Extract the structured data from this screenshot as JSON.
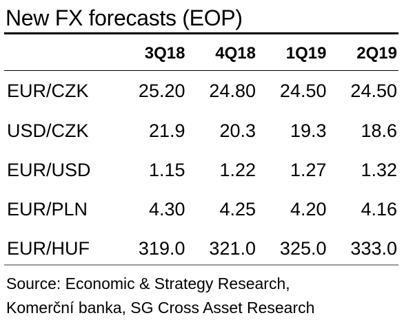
{
  "title": "New FX forecasts (EOP)",
  "table": {
    "columns": [
      "3Q18",
      "4Q18",
      "1Q19",
      "2Q19"
    ],
    "rows": [
      {
        "label": "EUR/CZK",
        "values": [
          "25.20",
          "24.80",
          "24.50",
          "24.50"
        ]
      },
      {
        "label": "USD/CZK",
        "values": [
          "21.9",
          "20.3",
          "19.3",
          "18.6"
        ]
      },
      {
        "label": "EUR/USD",
        "values": [
          "1.15",
          "1.22",
          "1.27",
          "1.32"
        ]
      },
      {
        "label": "EUR/PLN",
        "values": [
          "4.30",
          "4.25",
          "4.20",
          "4.16"
        ]
      },
      {
        "label": "EUR/HUF",
        "values": [
          "319.0",
          "321.0",
          "325.0",
          "333.0"
        ]
      }
    ]
  },
  "source": {
    "line1": "Source: Economic & Strategy Research,",
    "line2": "Komerční banka, SG Cross Asset Research"
  }
}
